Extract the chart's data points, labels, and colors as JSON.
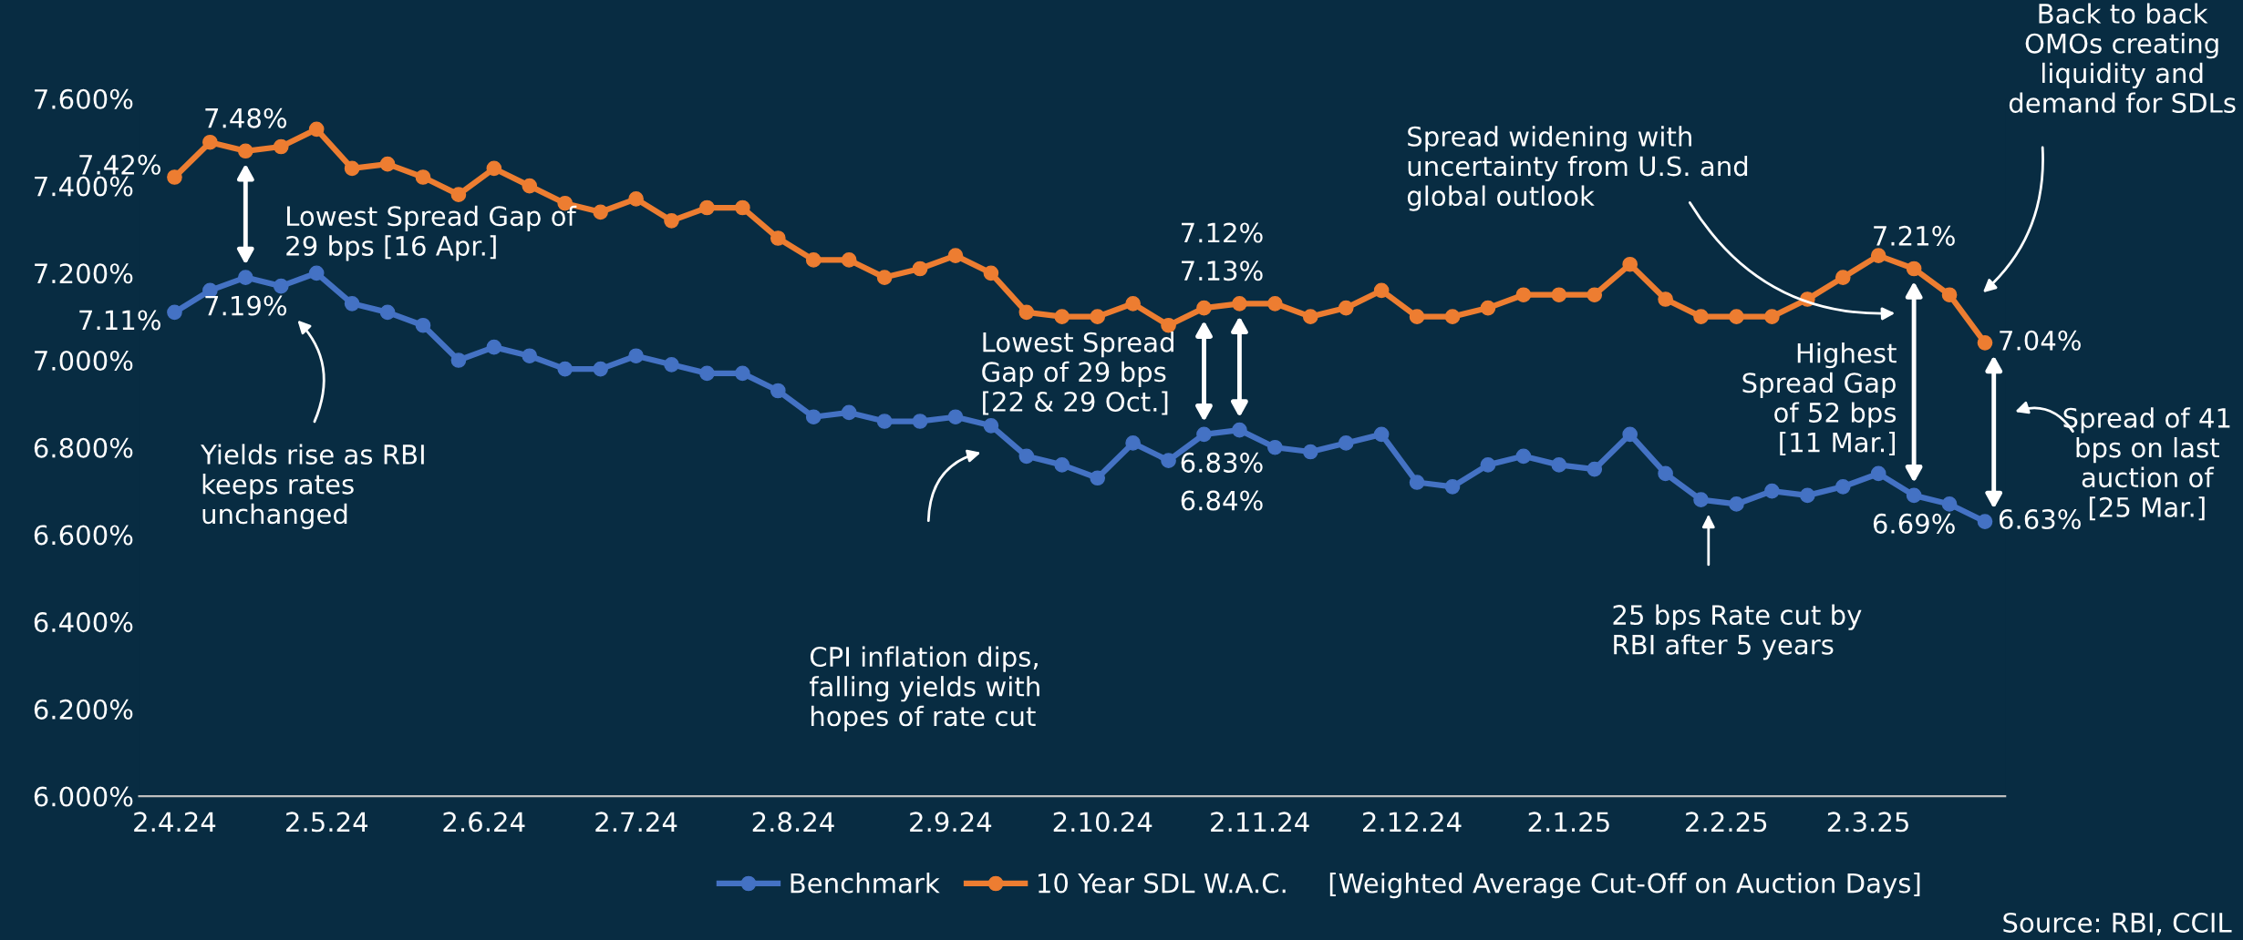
{
  "chart_data": {
    "type": "line",
    "x": [
      "2024-04-02",
      "2024-04-09",
      "2024-04-16",
      "2024-04-23",
      "2024-04-30",
      "2024-05-07",
      "2024-05-14",
      "2024-05-21",
      "2024-05-28",
      "2024-06-04",
      "2024-06-11",
      "2024-06-18",
      "2024-06-25",
      "2024-07-02",
      "2024-07-09",
      "2024-07-16",
      "2024-07-23",
      "2024-07-30",
      "2024-08-06",
      "2024-08-13",
      "2024-08-20",
      "2024-08-27",
      "2024-09-03",
      "2024-09-10",
      "2024-09-17",
      "2024-09-24",
      "2024-10-01",
      "2024-10-08",
      "2024-10-15",
      "2024-10-22",
      "2024-10-29",
      "2024-11-05",
      "2024-11-12",
      "2024-11-19",
      "2024-11-26",
      "2024-12-03",
      "2024-12-10",
      "2024-12-17",
      "2024-12-24",
      "2024-12-31",
      "2025-01-07",
      "2025-01-14",
      "2025-01-21",
      "2025-01-28",
      "2025-02-04",
      "2025-02-11",
      "2025-02-18",
      "2025-02-25",
      "2025-03-04",
      "2025-03-11",
      "2025-03-18",
      "2025-03-25"
    ],
    "series": [
      {
        "name": "Benchmark",
        "color": "#4472c4",
        "values": [
          7.11,
          7.16,
          7.19,
          7.17,
          7.2,
          7.13,
          7.11,
          7.08,
          7.0,
          7.03,
          7.01,
          6.98,
          6.98,
          7.01,
          6.99,
          6.97,
          6.97,
          6.93,
          6.87,
          6.88,
          6.86,
          6.86,
          6.87,
          6.85,
          6.78,
          6.76,
          6.73,
          6.81,
          6.77,
          6.83,
          6.84,
          6.8,
          6.79,
          6.81,
          6.83,
          6.72,
          6.71,
          6.76,
          6.78,
          6.76,
          6.75,
          6.83,
          6.74,
          6.68,
          6.67,
          6.7,
          6.69,
          6.71,
          6.74,
          6.69,
          6.67,
          6.63
        ],
        "value_labels": [
          "7.11%",
          null,
          "7.19%",
          null,
          null,
          null,
          null,
          null,
          null,
          null,
          null,
          null,
          null,
          null,
          null,
          null,
          null,
          null,
          null,
          null,
          null,
          null,
          null,
          null,
          null,
          null,
          null,
          null,
          null,
          "6.83%",
          "6.84%",
          null,
          null,
          null,
          null,
          null,
          null,
          null,
          null,
          null,
          null,
          null,
          null,
          null,
          null,
          null,
          null,
          null,
          null,
          "6.69%",
          null,
          "6.63%"
        ]
      },
      {
        "name": "10 Year SDL W.A.C.",
        "color": "#ed7d31",
        "values": [
          7.42,
          7.5,
          7.48,
          7.49,
          7.53,
          7.44,
          7.45,
          7.42,
          7.38,
          7.44,
          7.4,
          7.36,
          7.34,
          7.37,
          7.32,
          7.35,
          7.35,
          7.28,
          7.23,
          7.23,
          7.19,
          7.21,
          7.24,
          7.2,
          7.11,
          7.1,
          7.1,
          7.13,
          7.08,
          7.12,
          7.13,
          7.13,
          7.1,
          7.12,
          7.16,
          7.1,
          7.1,
          7.12,
          7.15,
          7.15,
          7.15,
          7.22,
          7.14,
          7.1,
          7.1,
          7.1,
          7.14,
          7.19,
          7.24,
          7.21,
          7.15,
          7.04
        ],
        "value_labels": [
          "7.42%",
          null,
          "7.48%",
          null,
          null,
          null,
          null,
          null,
          null,
          null,
          null,
          null,
          null,
          null,
          null,
          null,
          null,
          null,
          null,
          null,
          null,
          null,
          null,
          null,
          null,
          null,
          null,
          null,
          null,
          "7.12%",
          "7.13%",
          null,
          null,
          null,
          null,
          null,
          null,
          null,
          null,
          null,
          null,
          null,
          null,
          null,
          null,
          null,
          null,
          null,
          null,
          "7.21%",
          null,
          "7.04%"
        ]
      }
    ],
    "xlim": [
      "2024-03-26",
      "2025-03-29"
    ],
    "xticks": [
      {
        "value": "2024-04-02",
        "label": "2.4.24"
      },
      {
        "value": "2024-05-02",
        "label": "2.5.24"
      },
      {
        "value": "2024-06-02",
        "label": "2.6.24"
      },
      {
        "value": "2024-07-02",
        "label": "2.7.24"
      },
      {
        "value": "2024-08-02",
        "label": "2.8.24"
      },
      {
        "value": "2024-09-02",
        "label": "2.9.24"
      },
      {
        "value": "2024-10-02",
        "label": "2.10.24"
      },
      {
        "value": "2024-11-02",
        "label": "2.11.24"
      },
      {
        "value": "2024-12-02",
        "label": "2.12.24"
      },
      {
        "value": "2025-01-02",
        "label": "2.1.25"
      },
      {
        "value": "2025-02-02",
        "label": "2.2.25"
      },
      {
        "value": "2025-03-02",
        "label": "2.3.25"
      }
    ],
    "ylim": [
      6.0,
      7.6
    ],
    "yticks": [
      {
        "value": 6.0,
        "label": "6.000%"
      },
      {
        "value": 6.2,
        "label": "6.200%"
      },
      {
        "value": 6.4,
        "label": "6.400%"
      },
      {
        "value": 6.6,
        "label": "6.600%"
      },
      {
        "value": 6.8,
        "label": "6.800%"
      },
      {
        "value": 7.0,
        "label": "7.000%"
      },
      {
        "value": 7.2,
        "label": "7.200%"
      },
      {
        "value": 7.4,
        "label": "7.400%"
      },
      {
        "value": 7.6,
        "label": "7.600%"
      }
    ],
    "marker": "circle",
    "line_style": "solid",
    "grid": false,
    "legend": "bottom",
    "annotations": [
      "Lowest Spread Gap of\n29 bps [16 Apr.]",
      "Yields rise as RBI\nkeeps rates\nunchanged",
      "Lowest Spread\nGap of 29 bps\n[22 & 29 Oct.]",
      "CPI inflation dips,\nfalling yields with\nhopes of rate cut",
      "Spread widening with\nuncertainty from U.S. and\nglobal outlook",
      "Back to back\nOMOs creating\nliquidity and\ndemand for SDLs",
      "Highest\nSpread Gap\nof 52 bps\n[11 Mar.]",
      "Spread of 41\nbps on last\nauction of\n[25 Mar.]",
      "25 bps Rate cut by\nRBI after 5 years",
      "[Weighted Average Cut-Off on Auction Days]",
      "Source: RBI, CCIL"
    ]
  }
}
